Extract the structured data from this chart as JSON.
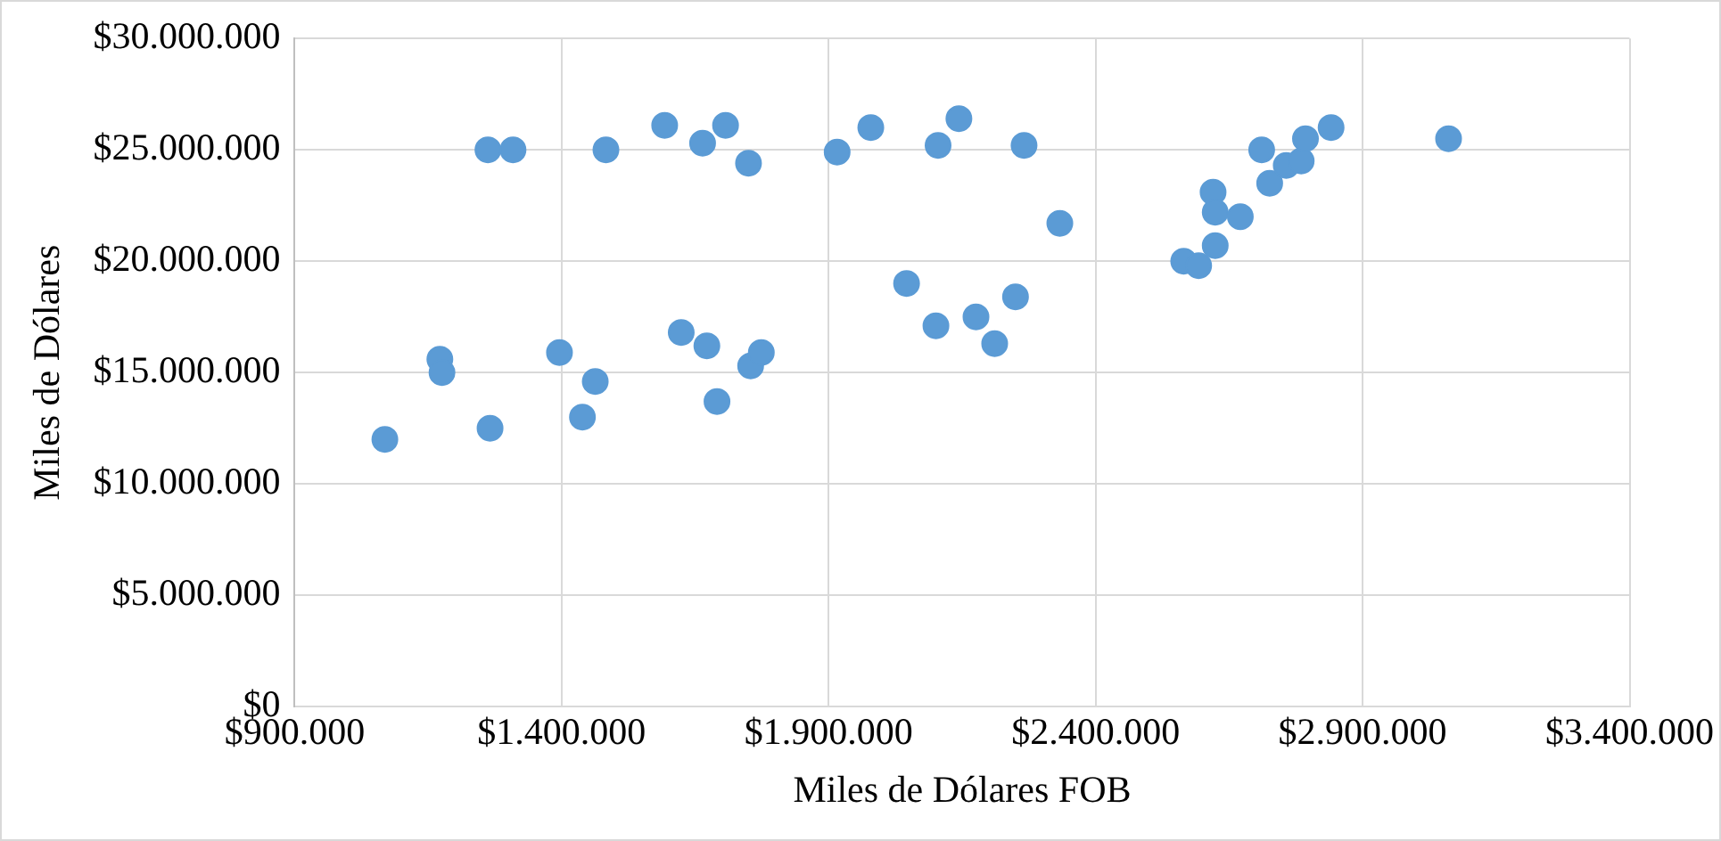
{
  "chart_data": {
    "type": "scatter",
    "xlabel": "Miles de Dólares FOB",
    "ylabel": "Miles de Dólares",
    "x": [
      1069000,
      1172000,
      1176000,
      1262000,
      1266000,
      1309000,
      1396000,
      1439000,
      1463000,
      1483000,
      1593000,
      1624000,
      1664000,
      1672000,
      1691000,
      1707000,
      1750000,
      1754000,
      1774000,
      1916000,
      1979000,
      2046000,
      2105000,
      2101000,
      2144000,
      2176000,
      2211000,
      2250000,
      2266000,
      2333000,
      2565000,
      2593000,
      2620000,
      2624000,
      2624000,
      2671000,
      2711000,
      2726000,
      2757000,
      2785000,
      2793000,
      2841000,
      3061000
    ],
    "values": [
      12000000,
      15600000,
      15000000,
      25000000,
      12500000,
      25000000,
      15900000,
      13000000,
      14600000,
      25000000,
      26100000,
      16800000,
      25300000,
      16200000,
      13700000,
      26100000,
      24400000,
      15300000,
      15900000,
      24900000,
      26000000,
      19000000,
      25200000,
      17100000,
      26400000,
      17500000,
      16300000,
      18400000,
      25200000,
      21700000,
      20000000,
      19800000,
      23100000,
      22200000,
      20700000,
      22000000,
      25000000,
      23500000,
      24300000,
      24500000,
      25500000,
      26000000,
      25500000
    ],
    "color": "#5b9bd5",
    "marker": "circle",
    "grid": true,
    "xlim": [
      900000,
      3400000
    ],
    "xticks": [
      {
        "value": 900000,
        "label": "$900.000"
      },
      {
        "value": 1400000,
        "label": "$1.400.000"
      },
      {
        "value": 1900000,
        "label": "$1.900.000"
      },
      {
        "value": 2400000,
        "label": "$2.400.000"
      },
      {
        "value": 2900000,
        "label": "$2.900.000"
      },
      {
        "value": 3400000,
        "label": "$3.400.000"
      }
    ],
    "ylim": [
      0,
      30000000
    ],
    "yticks": [
      {
        "value": 0,
        "label": "$0"
      },
      {
        "value": 5000000,
        "label": "$5.000.000"
      },
      {
        "value": 10000000,
        "label": "$10.000.000"
      },
      {
        "value": 15000000,
        "label": "$15.000.000"
      },
      {
        "value": 20000000,
        "label": "$20.000.000"
      },
      {
        "value": 25000000,
        "label": "$25.000.000"
      },
      {
        "value": 30000000,
        "label": "$30.000.000"
      }
    ]
  }
}
